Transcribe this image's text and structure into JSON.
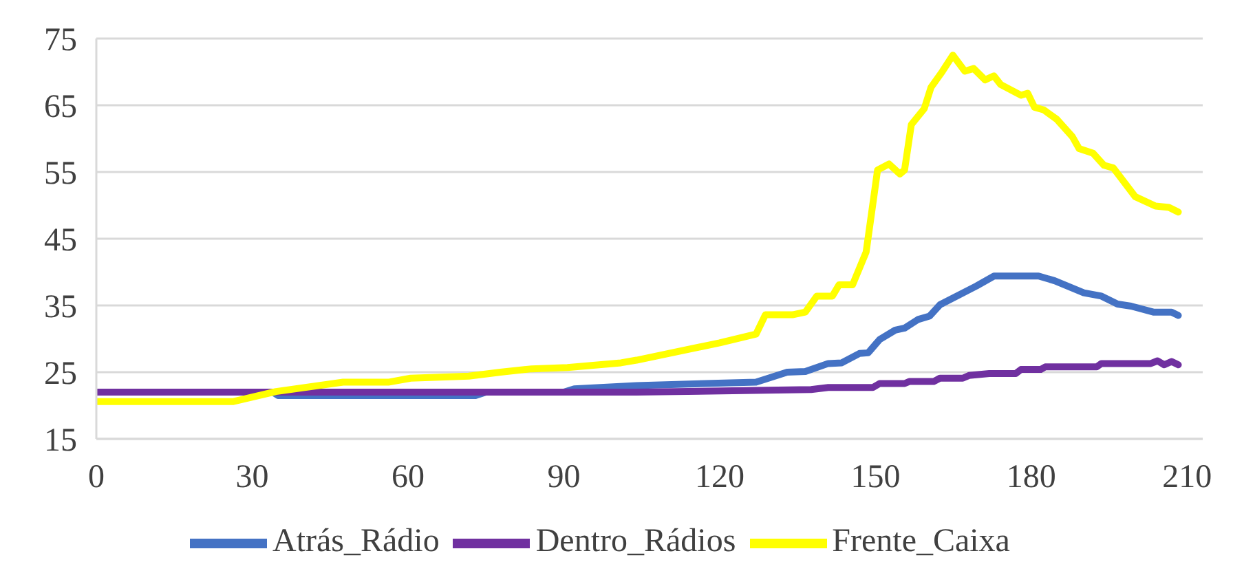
{
  "chart_data": {
    "type": "line",
    "xlim": [
      0,
      213
    ],
    "xticks": [
      0,
      30,
      60,
      90,
      120,
      150,
      180,
      210
    ],
    "ylim": [
      15,
      75
    ],
    "yticks": [
      15,
      25,
      35,
      45,
      55,
      65,
      75
    ],
    "grid": "y",
    "legend": "bottom",
    "marker": "none",
    "line_style": "solid",
    "series": [
      {
        "name": "Atrás_Rádio",
        "color": "#4472c4",
        "x": [
          0,
          34,
          35,
          73,
          75,
          90,
          92,
          104,
          127,
          129.8,
          133,
          136.5,
          140.9,
          143.5,
          146.9,
          148.6,
          150.8,
          153.8,
          155.6,
          158.2,
          160.4,
          162.4,
          169.4,
          172.8,
          181.4,
          184.5,
          190.1,
          193.5,
          196.6,
          199.2,
          203.5,
          207,
          208.3
        ],
        "values": [
          22,
          22,
          21.5,
          21.5,
          22,
          22,
          22.5,
          23,
          23.5,
          24.2,
          25,
          25.1,
          26.3,
          26.4,
          27.8,
          27.9,
          29.9,
          31.3,
          31.6,
          32.9,
          33.4,
          35.1,
          37.9,
          39.4,
          39.4,
          38.7,
          36.9,
          36.4,
          35.2,
          34.9,
          34,
          34,
          33.5
        ]
      },
      {
        "name": "Dentro_Rádios",
        "color": "#7030a0",
        "x": [
          0,
          104,
          137.6,
          140.9,
          149.5,
          150.8,
          155.6,
          156.5,
          161.2,
          162.4,
          166.8,
          168,
          171.9,
          177,
          178,
          181.8,
          182.7,
          192.6,
          193.5,
          203,
          204.3,
          205.6,
          207,
          208.3
        ],
        "values": [
          22,
          22,
          22.4,
          22.7,
          22.7,
          23.3,
          23.3,
          23.6,
          23.6,
          24.1,
          24.1,
          24.5,
          24.8,
          24.8,
          25.4,
          25.4,
          25.8,
          25.8,
          26.3,
          26.3,
          26.7,
          26.1,
          26.6,
          26.1
        ]
      },
      {
        "name": "Frente_Caixa",
        "color": "#ffff00",
        "x": [
          0,
          26.4,
          34.6,
          47.5,
          56.2,
          60.5,
          71.7,
          77.8,
          83.8,
          90.7,
          101,
          104,
          120,
          127,
          128.8,
          134,
          136.5,
          138.7,
          141.7,
          143,
          145.6,
          148.2,
          150.4,
          152.6,
          154.7,
          155.6,
          156.9,
          159.4,
          160.7,
          162.9,
          164.9,
          167.2,
          168.9,
          171.1,
          172.8,
          174.1,
          178,
          179.3,
          180.6,
          182.4,
          184.9,
          187.9,
          189.2,
          191.9,
          194,
          195.8,
          200,
          203.9,
          206.5,
          208.3
        ],
        "values": [
          20.6,
          20.6,
          22.1,
          23.5,
          23.5,
          24.1,
          24.4,
          25,
          25.5,
          25.7,
          26.4,
          26.8,
          29.4,
          30.7,
          33.6,
          33.6,
          34,
          36.4,
          36.4,
          38.1,
          38.1,
          43,
          55.3,
          56.2,
          54.7,
          55.3,
          62.1,
          64.5,
          67.7,
          70.1,
          72.5,
          70.1,
          70.5,
          68.8,
          69.4,
          68.1,
          66.5,
          66.8,
          64.7,
          64.3,
          62.9,
          60.3,
          58.5,
          57.8,
          56,
          55.6,
          51.3,
          49.9,
          49.7,
          49
        ]
      }
    ]
  }
}
